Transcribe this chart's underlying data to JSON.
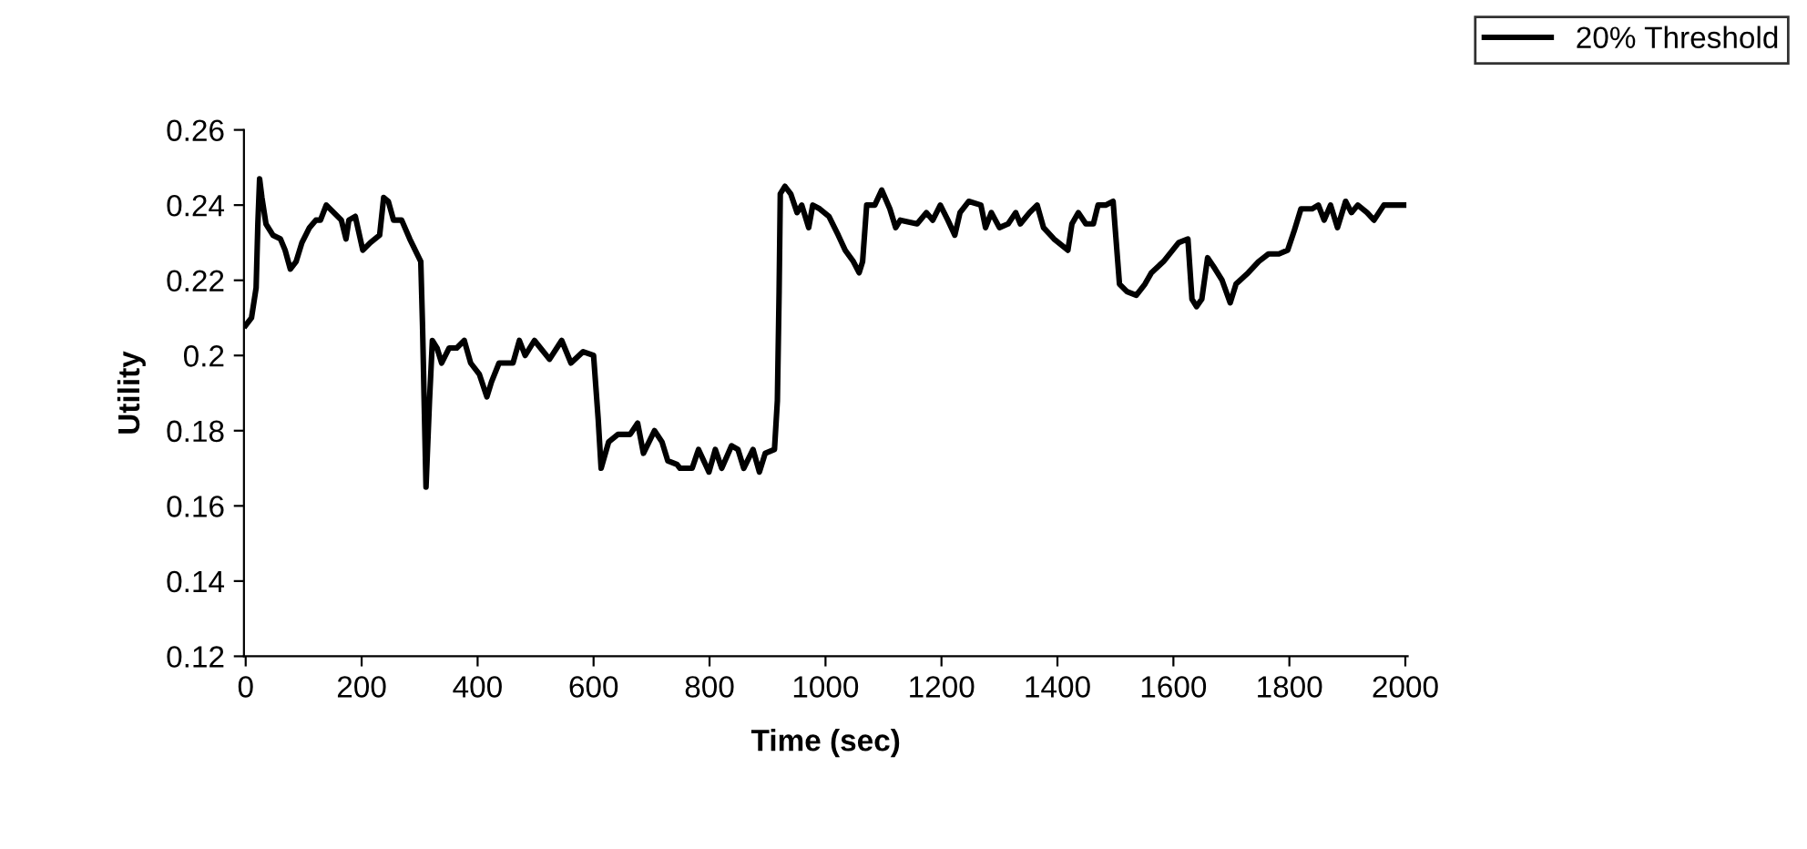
{
  "chart_data": {
    "type": "line",
    "xlabel": "Time (sec)",
    "ylabel": "Utility",
    "xlim": [
      -3,
      2004
    ],
    "xticks": [
      0,
      200,
      400,
      600,
      800,
      1000,
      1200,
      1400,
      1600,
      1800,
      2000
    ],
    "ylim": [
      0.12,
      0.26
    ],
    "yticks": [
      0.12,
      0.14,
      0.16,
      0.18,
      0.2,
      0.22,
      0.24,
      0.26
    ],
    "grid": false,
    "legend": "top right",
    "marker": "none",
    "line_style": "solid",
    "series": [
      {
        "name": "20% Threshold",
        "color": "#000000",
        "x": [
          0,
          10,
          18,
          21,
          24,
          28,
          35,
          47,
          60,
          68,
          77,
          87,
          97,
          110,
          121,
          129,
          139,
          152,
          165,
          173,
          178,
          189,
          202,
          215,
          231,
          238,
          246,
          255,
          269,
          283,
          302,
          305,
          311,
          317,
          322,
          330,
          338,
          351,
          364,
          377,
          388,
          403,
          416,
          424,
          437,
          461,
          472,
          482,
          498,
          524,
          545,
          561,
          582,
          600,
          608,
          613,
          626,
          642,
          663,
          676,
          686,
          705,
          718,
          728,
          744,
          749,
          770,
          781,
          799,
          810,
          821,
          838,
          849,
          859,
          875,
          886,
          896,
          912,
          917,
          920,
          922,
          930,
          940,
          951,
          959,
          971,
          978,
          990,
          1006,
          1022,
          1034,
          1048,
          1058,
          1064,
          1071,
          1085,
          1097,
          1111,
          1121,
          1129,
          1158,
          1174,
          1185,
          1198,
          1211,
          1223,
          1232,
          1247,
          1268,
          1276,
          1286,
          1300,
          1315,
          1328,
          1336,
          1352,
          1365,
          1376,
          1394,
          1418,
          1425,
          1436,
          1449,
          1462,
          1470,
          1483,
          1496,
          1507,
          1520,
          1536,
          1551,
          1562,
          1583,
          1609,
          1625,
          1632,
          1640,
          1649,
          1659,
          1672,
          1684,
          1698,
          1708,
          1729,
          1747,
          1764,
          1782,
          1797,
          1808,
          1820,
          1839,
          1850,
          1860,
          1871,
          1883,
          1897,
          1907,
          1918,
          1934,
          1946,
          1963,
          1997
        ],
        "values": [
          0.208,
          0.21,
          0.218,
          0.235,
          0.247,
          0.242,
          0.235,
          0.232,
          0.231,
          0.228,
          0.223,
          0.225,
          0.23,
          0.234,
          0.236,
          0.236,
          0.24,
          0.238,
          0.236,
          0.231,
          0.236,
          0.237,
          0.228,
          0.23,
          0.232,
          0.242,
          0.241,
          0.236,
          0.236,
          0.231,
          0.225,
          0.208,
          0.165,
          0.188,
          0.204,
          0.202,
          0.198,
          0.202,
          0.202,
          0.204,
          0.198,
          0.195,
          0.189,
          0.193,
          0.198,
          0.198,
          0.204,
          0.2,
          0.204,
          0.199,
          0.204,
          0.198,
          0.201,
          0.2,
          0.183,
          0.17,
          0.177,
          0.179,
          0.179,
          0.182,
          0.174,
          0.18,
          0.177,
          0.172,
          0.171,
          0.17,
          0.17,
          0.175,
          0.169,
          0.175,
          0.17,
          0.176,
          0.175,
          0.17,
          0.175,
          0.169,
          0.174,
          0.175,
          0.188,
          0.217,
          0.243,
          0.245,
          0.243,
          0.238,
          0.24,
          0.234,
          0.24,
          0.239,
          0.237,
          0.232,
          0.228,
          0.225,
          0.222,
          0.225,
          0.24,
          0.24,
          0.244,
          0.239,
          0.234,
          0.236,
          0.235,
          0.238,
          0.236,
          0.24,
          0.236,
          0.232,
          0.238,
          0.241,
          0.24,
          0.234,
          0.238,
          0.234,
          0.235,
          0.238,
          0.235,
          0.238,
          0.24,
          0.234,
          0.231,
          0.228,
          0.235,
          0.238,
          0.235,
          0.235,
          0.24,
          0.24,
          0.241,
          0.219,
          0.217,
          0.216,
          0.219,
          0.222,
          0.225,
          0.23,
          0.231,
          0.215,
          0.213,
          0.215,
          0.226,
          0.223,
          0.22,
          0.214,
          0.219,
          0.222,
          0.225,
          0.227,
          0.227,
          0.228,
          0.233,
          0.239,
          0.239,
          0.24,
          0.236,
          0.24,
          0.234,
          0.241,
          0.238,
          0.24,
          0.238,
          0.236,
          0.24,
          0.24
        ]
      }
    ]
  }
}
